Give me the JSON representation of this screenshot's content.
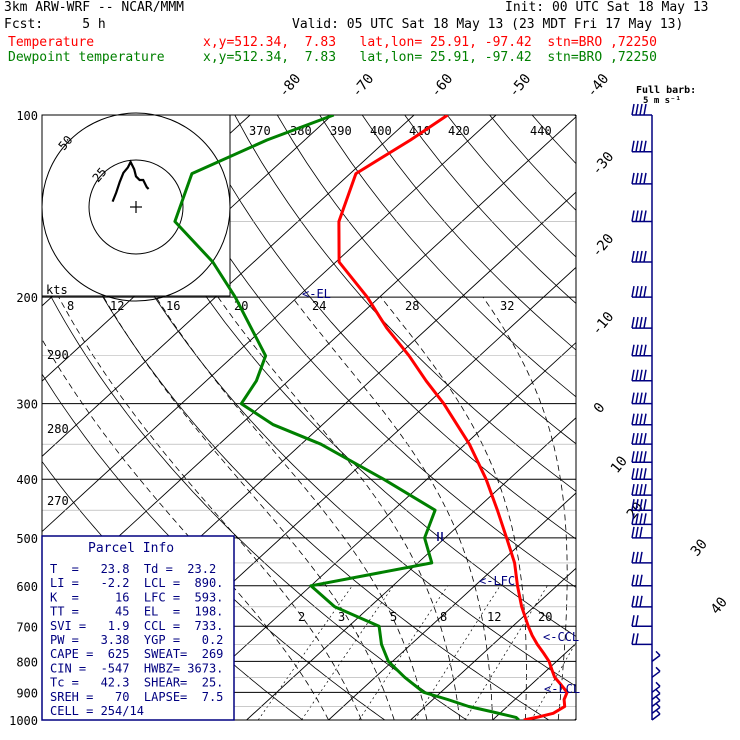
{
  "header": {
    "model": "3km ARW-WRF -- NCAR/MMM",
    "init": "Init: 00 UTC Sat 18 May 13",
    "fcst": "Fcst:     5 h",
    "valid": "Valid: 05 UTC Sat 18 May 13 (23 MDT Fri 17 May 13)",
    "temp_label": "Temperature",
    "temp_info": "x,y=512.34,  7.83   lat,lon= 25.91, -97.42  stn=BRO ,72250",
    "dew_label": "Dewpoint temperature",
    "dew_info": "x,y=512.34,  7.83   lat,lon= 25.91, -97.42  stn=BRO ,72250"
  },
  "full_barb_label": "Full barb:",
  "full_barb_units": "5 m s⁻¹",
  "hodograph": {
    "units": "kts",
    "ring_labels": [
      "50",
      "25"
    ]
  },
  "parcel_info": {
    "title": "Parcel Info",
    "rows": [
      "T  =   23.8  Td =  23.2",
      "LI =   -2.2  LCL =  890.",
      "K  =     16  LFC =  593.",
      "TT =     45  EL  =  198.",
      "SVI =   1.9  CCL =  733.",
      "PW =   3.38  YGP =   0.2",
      "CAPE =  625  SWEAT=  269",
      "CIN =  -547  HWBZ= 3673.",
      "Tc =   42.3  SHEAR=  25.",
      "SREH =   70  LAPSE=  7.5",
      "CELL = 254/14"
    ]
  },
  "levels": {
    "el": "<-EL",
    "lfc": "<-LFC",
    "ccl": "<-CCL",
    "lcl": "<-LCL"
  },
  "colors": {
    "temperature": "#ff0000",
    "dewpoint": "#008000",
    "wind": "#000080",
    "parcel_box": "#000080"
  },
  "chart_data": {
    "type": "line",
    "subtype": "skew-T log-p",
    "y_axis": {
      "label": "",
      "scale": "log",
      "ticks": [
        100,
        200,
        300,
        400,
        500,
        600,
        700,
        800,
        900,
        1000
      ]
    },
    "temperature_axis": {
      "ticks": [
        -80,
        -70,
        -60,
        -50,
        -40,
        -30,
        -20,
        -10,
        0,
        10,
        20,
        30,
        40
      ]
    },
    "theta_labels": [
      "370",
      "380",
      "390",
      "400",
      "410",
      "420",
      "430",
      "440",
      "290",
      "280",
      "270"
    ],
    "mixing_ratio_labels": [
      "8",
      "12",
      "16",
      "20",
      "24",
      "28",
      "32",
      "2",
      "3",
      "5",
      "8",
      "12",
      "20"
    ],
    "series": [
      {
        "name": "Temperature",
        "color": "#ff0000",
        "points": [
          [
            1000,
            23.8
          ],
          [
            990,
            25
          ],
          [
            975,
            26.5
          ],
          [
            950,
            27
          ],
          [
            925,
            26
          ],
          [
            900,
            25.4
          ],
          [
            875,
            23.7
          ],
          [
            850,
            21.9
          ],
          [
            825,
            20.5
          ],
          [
            800,
            19.1
          ],
          [
            775,
            17.3
          ],
          [
            750,
            15.4
          ],
          [
            725,
            13.6
          ],
          [
            700,
            11.9
          ],
          [
            650,
            8.5
          ],
          [
            600,
            5.2
          ],
          [
            550,
            1.8
          ],
          [
            500,
            -2.5
          ],
          [
            450,
            -7.3
          ],
          [
            400,
            -12.8
          ],
          [
            350,
            -19.5
          ],
          [
            300,
            -28
          ],
          [
            275,
            -33.2
          ],
          [
            250,
            -38.6
          ],
          [
            225,
            -45
          ],
          [
            200,
            -51.5
          ],
          [
            175,
            -59.6
          ],
          [
            150,
            -65
          ],
          [
            125,
            -69.3
          ],
          [
            110,
            -67.1
          ],
          [
            100,
            -65.9
          ]
        ]
      },
      {
        "name": "Dewpoint temperature",
        "color": "#008000",
        "points": [
          [
            1000,
            23.2
          ],
          [
            990,
            22.5
          ],
          [
            970,
            19
          ],
          [
            950,
            15.3
          ],
          [
            925,
            11.8
          ],
          [
            900,
            7.9
          ],
          [
            850,
            3.6
          ],
          [
            800,
            -0.5
          ],
          [
            750,
            -3.6
          ],
          [
            700,
            -6.3
          ],
          [
            650,
            -14.3
          ],
          [
            600,
            -20
          ],
          [
            550,
            -8.3
          ],
          [
            500,
            -12.5
          ],
          [
            450,
            -14.9
          ],
          [
            400,
            -25.3
          ],
          [
            350,
            -37.6
          ],
          [
            325,
            -46
          ],
          [
            300,
            -52.7
          ],
          [
            275,
            -53.9
          ],
          [
            250,
            -56.1
          ],
          [
            200,
            -67.6
          ],
          [
            175,
            -75
          ],
          [
            150,
            -85
          ],
          [
            125,
            -89.3
          ],
          [
            110,
            -84.6
          ],
          [
            100,
            -79.8
          ]
        ]
      }
    ],
    "hodograph_points": [
      [
        -13,
        -3
      ],
      [
        -11,
        -8
      ],
      [
        -9,
        -14
      ],
      [
        -7,
        -19
      ],
      [
        -4.5,
        -22
      ],
      [
        -3,
        -25
      ],
      [
        -1,
        -21
      ],
      [
        0,
        -17
      ],
      [
        1,
        -16
      ],
      [
        2,
        -15
      ],
      [
        4,
        -15
      ],
      [
        6,
        -11
      ],
      [
        7,
        -10
      ]
    ],
    "wind_barbs_levels": [
      100,
      115,
      130,
      150,
      175,
      200,
      225,
      250,
      275,
      300,
      325,
      350,
      375,
      400,
      425,
      450,
      475,
      500,
      550,
      600,
      650,
      700,
      750,
      800,
      850,
      900,
      925,
      950,
      975,
      1000
    ]
  }
}
